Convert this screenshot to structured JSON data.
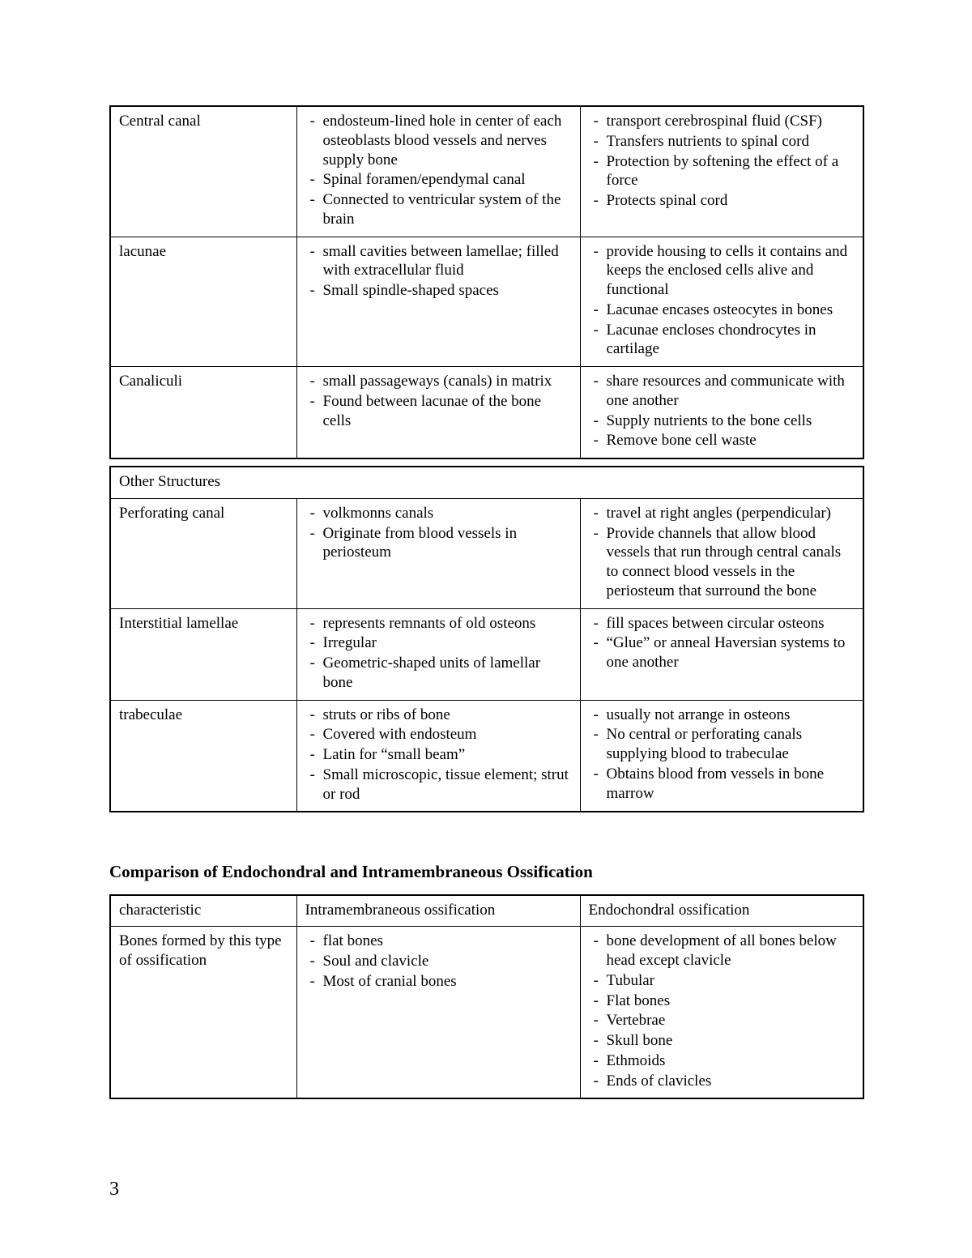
{
  "page_number": "3",
  "background_color": "#ffffff",
  "text_color": "#000000",
  "border_color": "#000000",
  "table1": {
    "rows": [
      {
        "term": "Central canal",
        "col2": [
          "endosteum-lined hole in center of each osteoblasts blood vessels and nerves supply bone",
          "Spinal foramen/ependymal canal",
          "Connected to ventricular system of the brain"
        ],
        "col3": [
          "transport cerebrospinal fluid (CSF)",
          "Transfers nutrients to spinal cord",
          "Protection by softening the effect of a force",
          "Protects spinal cord"
        ]
      },
      {
        "term": "lacunae",
        "col2": [
          "small cavities between lamellae; filled with extracellular fluid",
          "Small spindle-shaped spaces"
        ],
        "col3": [
          "provide housing to cells it contains and keeps the enclosed cells alive and functional",
          "Lacunae encases osteocytes in bones",
          "Lacunae encloses chondrocytes in cartilage"
        ]
      },
      {
        "term": "Canaliculi",
        "col2": [
          "small passageways (canals) in matrix",
          "Found between lacunae of the bone cells"
        ],
        "col3": [
          "share resources and communicate with one another",
          "Supply nutrients to the bone cells",
          "Remove bone cell waste"
        ]
      }
    ]
  },
  "table2": {
    "header": "Other Structures",
    "rows": [
      {
        "term": "Perforating canal",
        "col2": [
          "volkmonns canals",
          "Originate from blood vessels in periosteum"
        ],
        "col3": [
          "travel at right angles (perpendicular)",
          "Provide channels that allow blood vessels that run through central canals to connect blood vessels in the periosteum that surround the bone"
        ]
      },
      {
        "term": "Interstitial lamellae",
        "col2": [
          "represents remnants of old osteons",
          "Irregular",
          "Geometric-shaped units of lamellar bone"
        ],
        "col3": [
          "fill spaces between circular osteons",
          "“Glue” or anneal Haversian systems to one another"
        ]
      },
      {
        "term": "trabeculae",
        "col2": [
          "struts or ribs of bone",
          "Covered with endosteum",
          "Latin for “small beam”",
          "Small microscopic, tissue element; strut or rod"
        ],
        "col3": [
          "usually not arrange in osteons",
          "No central or perforating canals supplying blood to trabeculae",
          "Obtains blood from vessels in bone marrow"
        ]
      }
    ]
  },
  "heading2": "Comparison of Endochondral and Intramembraneous Ossification",
  "table3": {
    "headers": [
      "characteristic",
      "Intramembraneous ossification",
      "Endochondral ossification"
    ],
    "rows": [
      {
        "term": "Bones formed by this type of ossification",
        "col2": [
          "flat bones",
          "Soul and clavicle",
          "Most of cranial bones"
        ],
        "col3": [
          "bone development of all bones below head except clavicle",
          "Tubular",
          "Flat bones",
          "Vertebrae",
          "Skull bone",
          "Ethmoids",
          "Ends of clavicles"
        ]
      }
    ]
  }
}
